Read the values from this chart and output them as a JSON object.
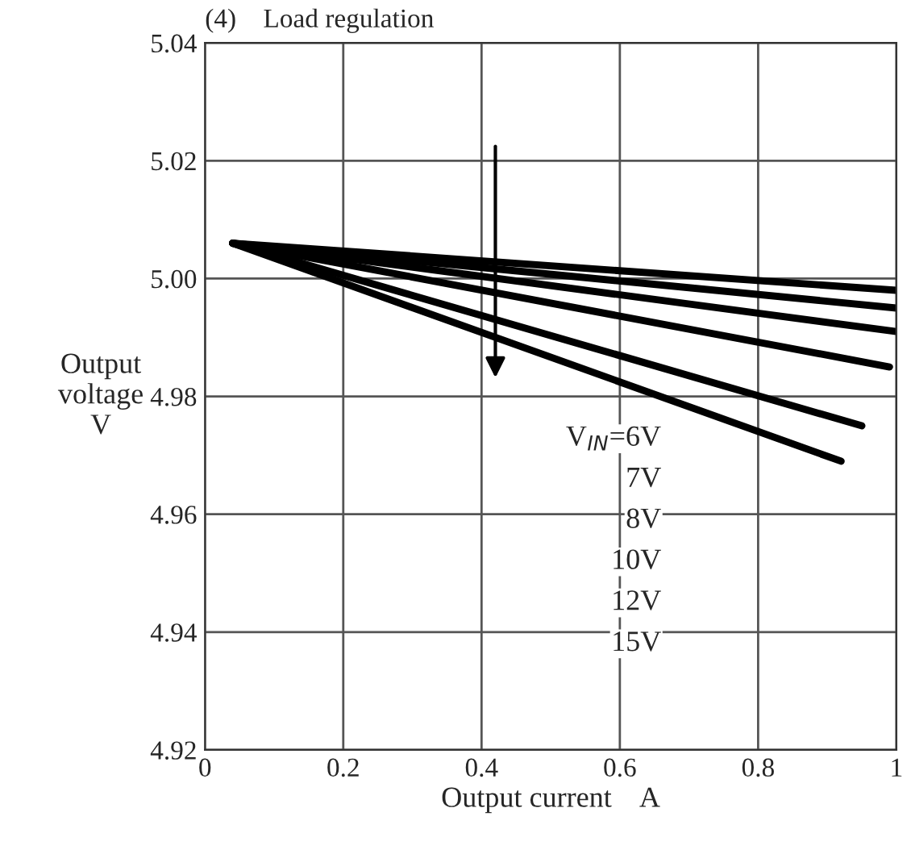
{
  "chart_data": {
    "type": "line",
    "title": "(4)    Load regulation",
    "xlabel": "Output current    A",
    "ylabel": "Output\nvoltage\nV",
    "x": [
      0.04,
      1.0
    ],
    "series": [
      {
        "color": "#000000",
        "values": [
          5.006,
          4.998
        ]
      },
      {
        "color": "#000000",
        "values": [
          5.006,
          4.995
        ]
      },
      {
        "color": "#000000",
        "values": [
          5.006,
          4.991
        ]
      },
      {
        "color": "#000000",
        "x": [
          0.04,
          0.99
        ],
        "values": [
          5.006,
          4.985
        ]
      },
      {
        "color": "#000000",
        "x": [
          0.04,
          0.95
        ],
        "values": [
          5.006,
          4.975
        ]
      },
      {
        "color": "#000000",
        "x": [
          0.04,
          0.92
        ],
        "values": [
          5.006,
          4.969
        ]
      }
    ],
    "xlim": [
      0,
      1
    ],
    "xticks": [
      0,
      0.2,
      0.4,
      0.6,
      0.8,
      1
    ],
    "ylim": [
      4.92,
      5.04
    ],
    "yticks": [
      4.92,
      4.94,
      4.96,
      4.98,
      {
        "value": 5.0,
        "label": "5.00"
      },
      5.02,
      5.04
    ],
    "annotations": [
      "V$_{IN}$=6V",
      "7V",
      "8V",
      "10V",
      "12V",
      "15V"
    ],
    "grid": true,
    "marker": "none",
    "line_style": "solid",
    "legend": false
  }
}
